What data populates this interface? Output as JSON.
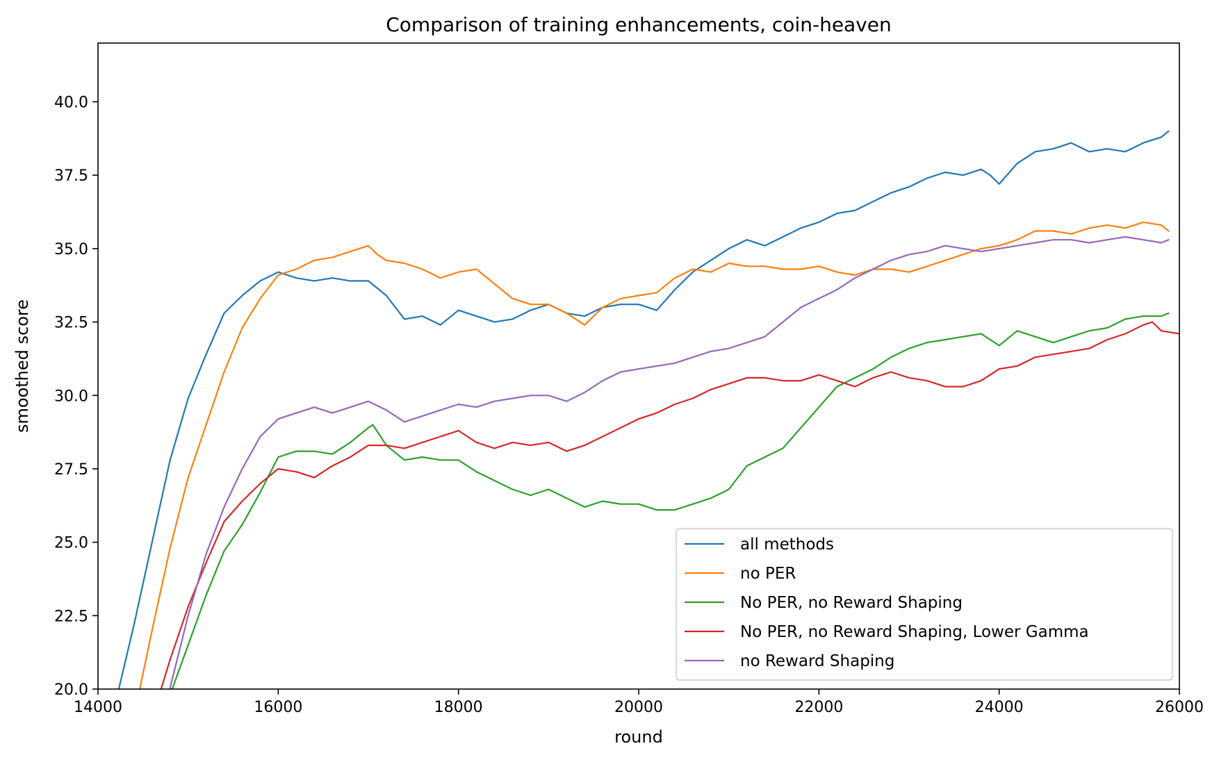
{
  "chart_data": {
    "type": "line",
    "title": "Comparison of training enhancements, coin-heaven",
    "xlabel": "round",
    "ylabel": "smoothed score",
    "xlim": [
      14000,
      26000
    ],
    "ylim": [
      20.0,
      42.0
    ],
    "xticks": [
      14000,
      16000,
      18000,
      20000,
      22000,
      24000,
      26000
    ],
    "yticks": [
      "20.0",
      "22.5",
      "25.0",
      "27.5",
      "30.0",
      "32.5",
      "35.0",
      "37.5",
      "40.0"
    ],
    "grid": false,
    "legend_position": "lower-right",
    "series": [
      {
        "name": "all methods",
        "color": "#1f77b4",
        "x": [
          14200,
          14400,
          14600,
          14800,
          15000,
          15200,
          15400,
          15600,
          15800,
          16000,
          16200,
          16400,
          16600,
          16800,
          17000,
          17200,
          17400,
          17600,
          17800,
          18000,
          18200,
          18400,
          18600,
          18800,
          19000,
          19200,
          19400,
          19600,
          19800,
          20000,
          20200,
          20400,
          20600,
          20800,
          21000,
          21200,
          21400,
          21600,
          21800,
          22000,
          22200,
          22400,
          22600,
          22800,
          23000,
          23200,
          23400,
          23600,
          23800,
          23900,
          24000,
          24200,
          24400,
          24600,
          24800,
          25000,
          25200,
          25400,
          25600,
          25800,
          25880
        ],
        "y": [
          19.6,
          22.2,
          25.0,
          27.8,
          29.9,
          31.4,
          32.8,
          33.4,
          33.9,
          34.2,
          34.0,
          33.9,
          34.0,
          33.9,
          33.9,
          33.4,
          32.6,
          32.7,
          32.4,
          32.9,
          32.7,
          32.5,
          32.6,
          32.9,
          33.1,
          32.8,
          32.7,
          33.0,
          33.1,
          33.1,
          32.9,
          33.6,
          34.2,
          34.6,
          35.0,
          35.3,
          35.1,
          35.4,
          35.7,
          35.9,
          36.2,
          36.3,
          36.6,
          36.9,
          37.1,
          37.4,
          37.6,
          37.5,
          37.7,
          37.5,
          37.2,
          37.9,
          38.3,
          38.4,
          38.6,
          38.3,
          38.4,
          38.3,
          38.6,
          38.8,
          39.0
        ]
      },
      {
        "name": "no PER",
        "color": "#ff7f0e",
        "x": [
          14450,
          14600,
          14800,
          15000,
          15200,
          15400,
          15600,
          15800,
          16000,
          16200,
          16400,
          16600,
          16800,
          17000,
          17100,
          17200,
          17400,
          17600,
          17800,
          18000,
          18200,
          18400,
          18600,
          18800,
          19000,
          19200,
          19400,
          19600,
          19800,
          20000,
          20200,
          20400,
          20600,
          20800,
          21000,
          21200,
          21400,
          21600,
          21800,
          22000,
          22200,
          22400,
          22600,
          22800,
          23000,
          23200,
          23400,
          23600,
          23800,
          24000,
          24200,
          24400,
          24600,
          24800,
          25000,
          25200,
          25400,
          25600,
          25800,
          25880
        ],
        "y": [
          19.8,
          22.0,
          24.8,
          27.2,
          29.0,
          30.8,
          32.3,
          33.3,
          34.1,
          34.3,
          34.6,
          34.7,
          34.9,
          35.1,
          34.8,
          34.6,
          34.5,
          34.3,
          34.0,
          34.2,
          34.3,
          33.8,
          33.3,
          33.1,
          33.1,
          32.8,
          32.4,
          33.0,
          33.3,
          33.4,
          33.5,
          34.0,
          34.3,
          34.2,
          34.5,
          34.4,
          34.4,
          34.3,
          34.3,
          34.4,
          34.2,
          34.1,
          34.3,
          34.3,
          34.2,
          34.4,
          34.6,
          34.8,
          35.0,
          35.1,
          35.3,
          35.6,
          35.6,
          35.5,
          35.7,
          35.8,
          35.7,
          35.9,
          35.8,
          35.6
        ]
      },
      {
        "name": "No PER, no Reward Shaping",
        "color": "#2ca02c",
        "x": [
          14800,
          15000,
          15200,
          15400,
          15600,
          15800,
          16000,
          16200,
          16400,
          16600,
          16800,
          17000,
          17050,
          17200,
          17400,
          17600,
          17800,
          18000,
          18200,
          18400,
          18600,
          18800,
          19000,
          19200,
          19400,
          19600,
          19800,
          20000,
          20200,
          20400,
          20600,
          20800,
          21000,
          21200,
          21400,
          21600,
          21800,
          22000,
          22200,
          22400,
          22600,
          22800,
          23000,
          23200,
          23400,
          23600,
          23800,
          24000,
          24200,
          24400,
          24600,
          24800,
          25000,
          25200,
          25400,
          25600,
          25800,
          25880
        ],
        "y": [
          19.8,
          21.5,
          23.2,
          24.7,
          25.6,
          26.7,
          27.9,
          28.1,
          28.1,
          28.0,
          28.4,
          28.9,
          29.0,
          28.3,
          27.8,
          27.9,
          27.8,
          27.8,
          27.4,
          27.1,
          26.8,
          26.6,
          26.8,
          26.5,
          26.2,
          26.4,
          26.3,
          26.3,
          26.1,
          26.1,
          26.3,
          26.5,
          26.8,
          27.6,
          27.9,
          28.2,
          28.9,
          29.6,
          30.3,
          30.6,
          30.9,
          31.3,
          31.6,
          31.8,
          31.9,
          32.0,
          32.1,
          31.7,
          32.2,
          32.0,
          31.8,
          32.0,
          32.2,
          32.3,
          32.6,
          32.7,
          32.7,
          32.8
        ]
      },
      {
        "name": "No PER, no Reward Shaping, Lower Gamma",
        "color": "#d62728",
        "x": [
          14680,
          14800,
          15000,
          15200,
          15400,
          15600,
          15800,
          16000,
          16200,
          16400,
          16600,
          16800,
          17000,
          17200,
          17400,
          17600,
          17800,
          18000,
          18200,
          18400,
          18600,
          18800,
          19000,
          19200,
          19400,
          19600,
          19800,
          20000,
          20200,
          20400,
          20600,
          20800,
          21000,
          21200,
          21400,
          21600,
          21800,
          22000,
          22200,
          22400,
          22600,
          22800,
          23000,
          23200,
          23400,
          23600,
          23800,
          24000,
          24200,
          24400,
          24600,
          24800,
          25000,
          25200,
          25400,
          25600,
          25700,
          25800,
          26000
        ],
        "y": [
          19.8,
          21.0,
          22.8,
          24.3,
          25.7,
          26.4,
          27.0,
          27.5,
          27.4,
          27.2,
          27.6,
          27.9,
          28.3,
          28.3,
          28.2,
          28.4,
          28.6,
          28.8,
          28.4,
          28.2,
          28.4,
          28.3,
          28.4,
          28.1,
          28.3,
          28.6,
          28.9,
          29.2,
          29.4,
          29.7,
          29.9,
          30.2,
          30.4,
          30.6,
          30.6,
          30.5,
          30.5,
          30.7,
          30.5,
          30.3,
          30.6,
          30.8,
          30.6,
          30.5,
          30.3,
          30.3,
          30.5,
          30.9,
          31.0,
          31.3,
          31.4,
          31.5,
          31.6,
          31.9,
          32.1,
          32.4,
          32.5,
          32.2,
          32.1
        ]
      },
      {
        "name": "no Reward Shaping",
        "color": "#9467bd",
        "x": [
          14780,
          15000,
          15200,
          15400,
          15600,
          15800,
          16000,
          16200,
          16400,
          16600,
          16800,
          17000,
          17200,
          17400,
          17600,
          17800,
          18000,
          18200,
          18400,
          18600,
          18800,
          19000,
          19200,
          19400,
          19600,
          19800,
          20000,
          20200,
          20400,
          20600,
          20800,
          21000,
          21200,
          21400,
          21600,
          21800,
          22000,
          22200,
          22400,
          22600,
          22800,
          23000,
          23200,
          23400,
          23600,
          23800,
          24000,
          24200,
          24400,
          24600,
          24800,
          25000,
          25200,
          25400,
          25600,
          25800,
          25880
        ],
        "y": [
          19.8,
          22.5,
          24.6,
          26.2,
          27.5,
          28.6,
          29.2,
          29.4,
          29.6,
          29.4,
          29.6,
          29.8,
          29.5,
          29.1,
          29.3,
          29.5,
          29.7,
          29.6,
          29.8,
          29.9,
          30.0,
          30.0,
          29.8,
          30.1,
          30.5,
          30.8,
          30.9,
          31.0,
          31.1,
          31.3,
          31.5,
          31.6,
          31.8,
          32.0,
          32.5,
          33.0,
          33.3,
          33.6,
          34.0,
          34.3,
          34.6,
          34.8,
          34.9,
          35.1,
          35.0,
          34.9,
          35.0,
          35.1,
          35.2,
          35.3,
          35.3,
          35.2,
          35.3,
          35.4,
          35.3,
          35.2,
          35.3
        ]
      }
    ]
  }
}
